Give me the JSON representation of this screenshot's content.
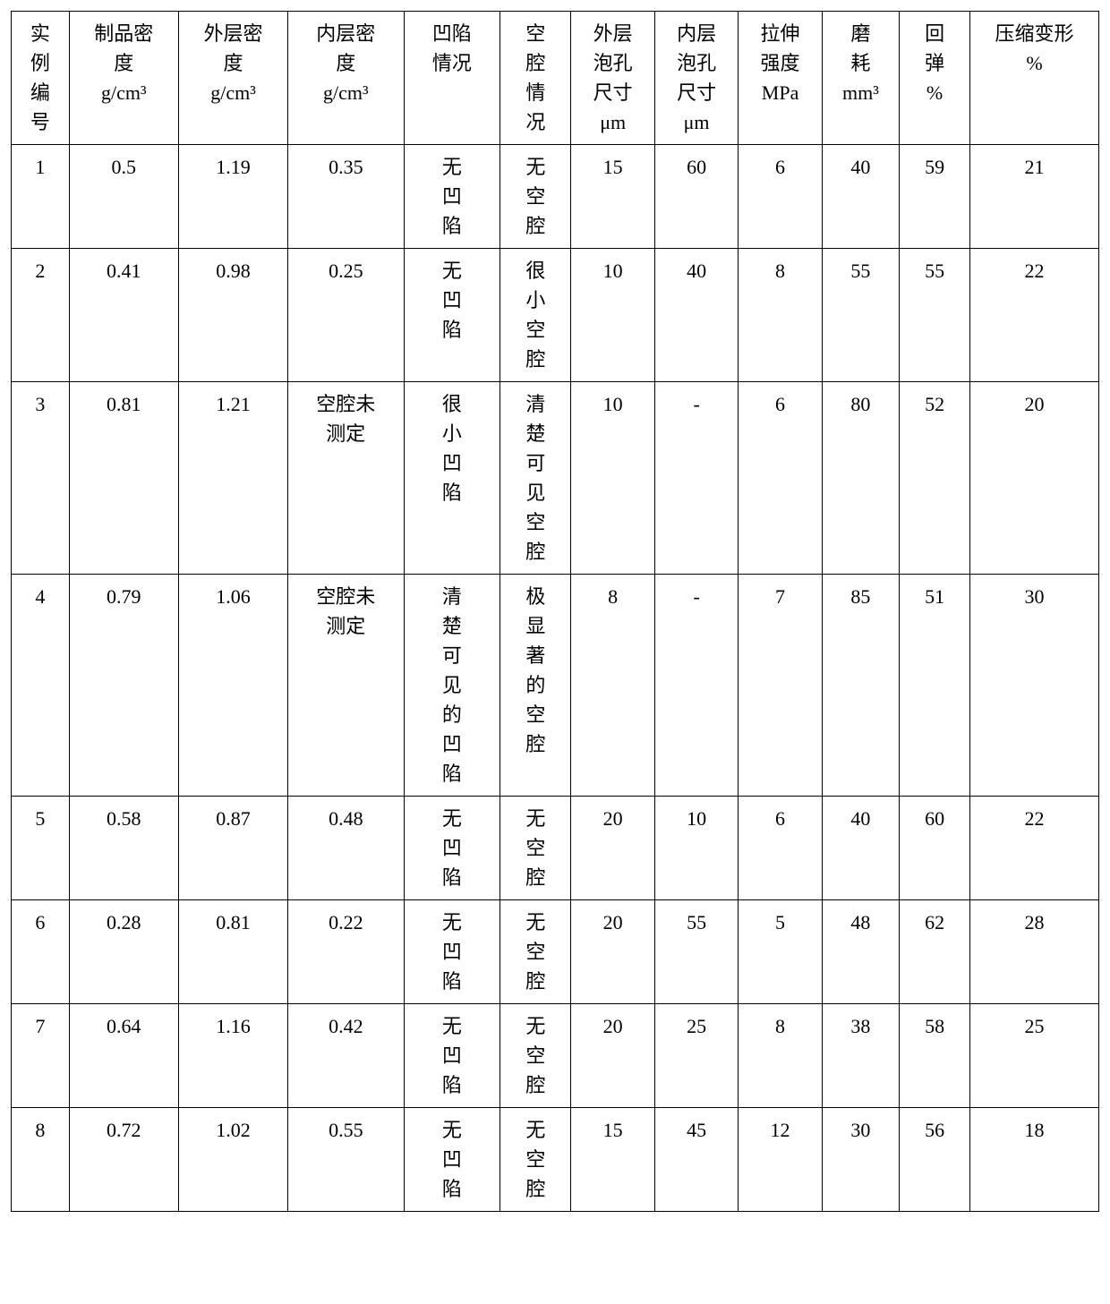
{
  "table": {
    "background": "#ffffff",
    "border_color": "#000000",
    "font_family": "SimSun",
    "base_fontsize": 22,
    "columns": [
      {
        "key": "id",
        "label_lines": [
          "实",
          "例",
          "编",
          "号"
        ],
        "width": "4.5%",
        "align": "center"
      },
      {
        "key": "prod_dens",
        "label_lines": [
          "制品密",
          "度",
          "g/cm³"
        ],
        "width": "8.5%",
        "align": "center"
      },
      {
        "key": "outer_dens",
        "label_lines": [
          "外层密",
          "度",
          "g/cm³"
        ],
        "width": "8.5%",
        "align": "center"
      },
      {
        "key": "inner_dens",
        "label_lines": [
          "内层密",
          "度",
          "g/cm³"
        ],
        "width": "9%",
        "align": "center"
      },
      {
        "key": "dent",
        "label_lines": [
          "凹陷",
          "情况"
        ],
        "width": "7.5%",
        "align": "left"
      },
      {
        "key": "cavity",
        "label_lines": [
          "空",
          "腔",
          "情",
          "况"
        ],
        "width": "5.5%",
        "align": "left"
      },
      {
        "key": "outer_cell",
        "label_lines": [
          "外层",
          "泡孔",
          "尺寸",
          "μm"
        ],
        "width": "6.5%",
        "align": "center"
      },
      {
        "key": "inner_cell",
        "label_lines": [
          "内层",
          "泡孔",
          "尺寸",
          "μm"
        ],
        "width": "6.5%",
        "align": "center"
      },
      {
        "key": "tensile",
        "label_lines": [
          "拉伸",
          "强度",
          "MPa"
        ],
        "width": "6.5%",
        "align": "center"
      },
      {
        "key": "wear",
        "label_lines": [
          "磨",
          "耗",
          "mm³"
        ],
        "width": "6%",
        "align": "center"
      },
      {
        "key": "rebound",
        "label_lines": [
          "回",
          "弹",
          "%"
        ],
        "width": "5.5%",
        "align": "center"
      },
      {
        "key": "comp",
        "label_lines": [
          "压缩变形",
          "%"
        ],
        "width": "10%",
        "align": "center"
      }
    ],
    "rows": [
      {
        "id": "1",
        "prod_dens": "0.5",
        "outer_dens": "1.19",
        "inner_dens": "0.35",
        "dent": "无凹陷",
        "cavity": "无空腔",
        "outer_cell": "15",
        "inner_cell": "60",
        "tensile": "6",
        "wear": "40",
        "rebound": "59",
        "comp": "21"
      },
      {
        "id": "2",
        "prod_dens": "0.41",
        "outer_dens": "0.98",
        "inner_dens": "0.25",
        "dent": "无凹陷",
        "cavity": "很小空腔",
        "outer_cell": "10",
        "inner_cell": "40",
        "tensile": "8",
        "wear": "55",
        "rebound": "55",
        "comp": "22"
      },
      {
        "id": "3",
        "prod_dens": "0.81",
        "outer_dens": "1.21",
        "inner_dens": "空腔未测定",
        "dent": "很小凹陷",
        "cavity": "清楚可见空腔",
        "outer_cell": "10",
        "inner_cell": "-",
        "tensile": "6",
        "wear": "80",
        "rebound": "52",
        "comp": "20"
      },
      {
        "id": "4",
        "prod_dens": "0.79",
        "outer_dens": "1.06",
        "inner_dens": "空腔未测定",
        "dent": "清楚可见的凹陷",
        "cavity": "极显著的空腔",
        "outer_cell": "8",
        "inner_cell": "-",
        "tensile": "7",
        "wear": "85",
        "rebound": "51",
        "comp": "30"
      },
      {
        "id": "5",
        "prod_dens": "0.58",
        "outer_dens": "0.87",
        "inner_dens": "0.48",
        "dent": "无凹陷",
        "cavity": "无空腔",
        "outer_cell": "20",
        "inner_cell": "10",
        "tensile": "6",
        "wear": "40",
        "rebound": "60",
        "comp": "22"
      },
      {
        "id": "6",
        "prod_dens": "0.28",
        "outer_dens": "0.81",
        "inner_dens": "0.22",
        "dent": "无 凹陷",
        "cavity": "无空腔",
        "outer_cell": "20",
        "inner_cell": "55",
        "tensile": "5",
        "wear": "48",
        "rebound": "62",
        "comp": "28"
      },
      {
        "id": "7",
        "prod_dens": "0.64",
        "outer_dens": "1.16",
        "inner_dens": "0.42",
        "dent": "无凹陷",
        "cavity": "无空腔",
        "outer_cell": "20",
        "inner_cell": "25",
        "tensile": "8",
        "wear": "38",
        "rebound": "58",
        "comp": "25"
      },
      {
        "id": "8",
        "prod_dens": "0.72",
        "outer_dens": "1.02",
        "inner_dens": "0.55",
        "dent": "无 凹陷",
        "cavity": "无空腔",
        "outer_cell": "15",
        "inner_cell": "45",
        "tensile": "12",
        "wear": "30",
        "rebound": "56",
        "comp": "18"
      }
    ],
    "vertical_cell_cols": [
      "dent",
      "cavity"
    ],
    "two_char_wrap_cols": {
      "inner_dens": 3
    }
  }
}
